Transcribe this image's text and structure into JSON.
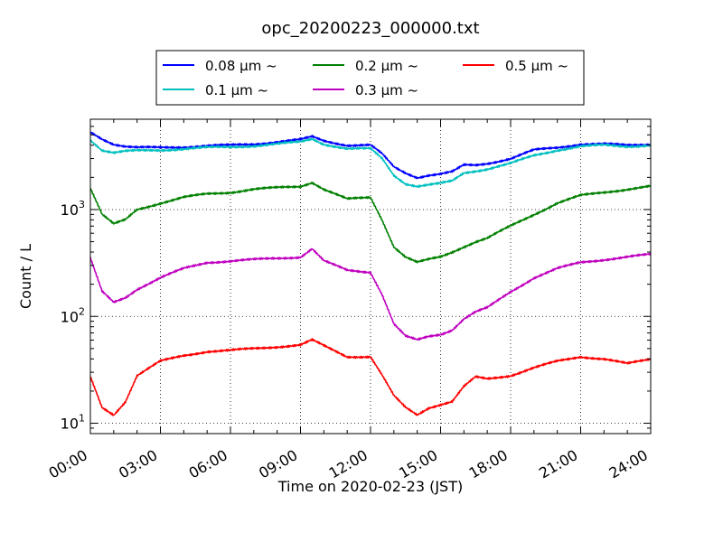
{
  "chart_data": {
    "type": "line",
    "title": "opc_20200223_000000.txt",
    "xlabel": "Time on 2020-02-23 (JST)",
    "ylabel": "Count / L",
    "yscale": "log",
    "xlim": [
      "00:00",
      "24:00"
    ],
    "ylim": [
      8,
      7000
    ],
    "grid": true,
    "legend_position": "top-center",
    "xticks": [
      "00:00",
      "03:00",
      "06:00",
      "09:00",
      "12:00",
      "15:00",
      "18:00",
      "21:00",
      "24:00"
    ],
    "yticks": [
      {
        "value": 10,
        "base": "10",
        "exp": "1"
      },
      {
        "value": 100,
        "base": "10",
        "exp": "2"
      },
      {
        "value": 1000,
        "base": "10",
        "exp": "3"
      }
    ],
    "x": [
      "00:00",
      "00:30",
      "01:00",
      "01:30",
      "02:00",
      "03:00",
      "04:00",
      "05:00",
      "06:00",
      "07:00",
      "08:00",
      "09:00",
      "09:30",
      "10:00",
      "11:00",
      "12:00",
      "12:30",
      "13:00",
      "13:30",
      "14:00",
      "14:30",
      "15:00",
      "15:30",
      "16:00",
      "16:30",
      "17:00",
      "18:00",
      "19:00",
      "20:00",
      "21:00",
      "22:00",
      "23:00",
      "24:00"
    ],
    "series": [
      {
        "name": "0.08 µm ~",
        "color": "#0000ff",
        "values": [
          5300,
          4600,
          4100,
          3900,
          3800,
          3800,
          3850,
          3950,
          4000,
          4100,
          4300,
          4500,
          4800,
          4400,
          4000,
          4000,
          3300,
          2500,
          2200,
          2000,
          2100,
          2150,
          2250,
          2600,
          2600,
          2700,
          3000,
          3600,
          3800,
          4100,
          4100,
          4000,
          4100
        ]
      },
      {
        "name": "0.1 µm ~",
        "color": "#00bfbf",
        "values": [
          4500,
          3600,
          3400,
          3500,
          3550,
          3600,
          3700,
          3800,
          3850,
          3950,
          4100,
          4300,
          4600,
          4100,
          3700,
          3700,
          3000,
          2100,
          1750,
          1650,
          1700,
          1750,
          1850,
          2200,
          2300,
          2400,
          2700,
          3200,
          3600,
          3900,
          4000,
          3900,
          4000
        ]
      },
      {
        "name": "0.2 µm ~",
        "color": "#008000",
        "values": [
          1600,
          900,
          730,
          800,
          1000,
          1150,
          1300,
          1400,
          1450,
          1550,
          1600,
          1650,
          1800,
          1550,
          1250,
          1300,
          800,
          450,
          360,
          320,
          340,
          360,
          400,
          450,
          500,
          540,
          700,
          900,
          1150,
          1350,
          1450,
          1550,
          1650
        ]
      },
      {
        "name": "0.3 µm ~",
        "color": "#bf00bf",
        "values": [
          350,
          170,
          135,
          150,
          180,
          230,
          280,
          320,
          330,
          340,
          350,
          360,
          430,
          330,
          270,
          260,
          160,
          85,
          65,
          60,
          65,
          68,
          75,
          95,
          110,
          120,
          170,
          230,
          280,
          320,
          340,
          360,
          380
        ]
      },
      {
        "name": "0.5 µm ~",
        "color": "#ff0000",
        "values": [
          27,
          14,
          12,
          16,
          28,
          38,
          43,
          47,
          48,
          50,
          52,
          54,
          60,
          53,
          42,
          42,
          28,
          18,
          14,
          12,
          14,
          15,
          16,
          22,
          27,
          26,
          28,
          33,
          38,
          42,
          40,
          36,
          40
        ]
      }
    ]
  }
}
